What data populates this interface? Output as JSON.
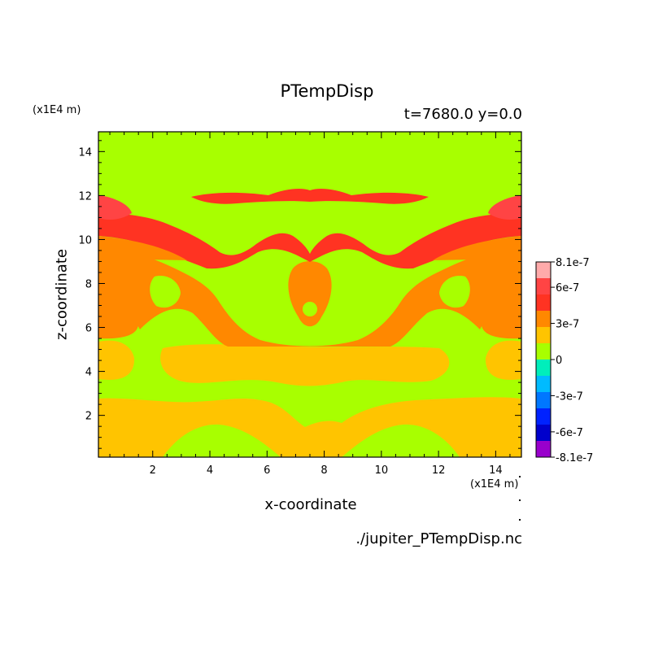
{
  "title": "PTempDisp",
  "subtitle": "t=7680.0 y=0.0",
  "file_label": "./jupiter_PTempDisp.nc",
  "chart_data": {
    "type": "heatmap",
    "title": "PTempDisp",
    "subtitle": "t=7680.0 y=0.0",
    "xlabel": "x-coordinate",
    "ylabel": "z-coordinate",
    "x_unit": "(x1E4 m)",
    "y_unit": "(x1E4 m)",
    "xlim": [
      0.1,
      14.9
    ],
    "ylim": [
      0.1,
      14.9
    ],
    "x_ticks": [
      2,
      4,
      6,
      8,
      10,
      12,
      14
    ],
    "y_ticks": [
      2,
      4,
      6,
      8,
      10,
      12,
      14
    ],
    "colorbar": {
      "tick_labels": [
        "8.1e-7",
        "6e-7",
        "3e-7",
        "0",
        "-3e-7",
        "-6e-7",
        "-8.1e-7"
      ],
      "tick_values": [
        8.1e-07,
        6e-07,
        3e-07,
        0,
        -3e-07,
        -6e-07,
        -8.1e-07
      ],
      "levels": [
        -8.1e-07,
        -6.75e-07,
        -5.4e-07,
        -4.05e-07,
        -2.7e-07,
        -1.35e-07,
        0,
        1.35e-07,
        2.7e-07,
        4.05e-07,
        5.4e-07,
        6.75e-07,
        8.1e-07
      ],
      "colors": [
        "#9900cc",
        "#0000cc",
        "#0022ff",
        "#0077ff",
        "#00bbff",
        "#00eebb",
        "#a8ff00",
        "#ffc400",
        "#ff8800",
        "#ff3322",
        "#ff4444",
        "#ffaaaa"
      ]
    },
    "regions": [
      {
        "name": "background",
        "value": 0,
        "color": "#a8ff00"
      },
      {
        "name": "lower-warm-layer",
        "value_range": [
          0,
          2.7e-07
        ],
        "z_range": [
          0.1,
          2.8
        ],
        "color": "#ffc400"
      },
      {
        "name": "mid-warm-layer",
        "value_range": [
          0,
          2.7e-07
        ],
        "z_range": [
          3.7,
          5.3
        ],
        "color": "#ffc400"
      },
      {
        "name": "plume-region",
        "value_range": [
          2.7e-07,
          5.4e-07
        ],
        "z_range": [
          5.2,
          9.5
        ],
        "color": "#ff8800"
      },
      {
        "name": "upper-hot-band",
        "value_range": [
          5.4e-07,
          6.75e-07
        ],
        "z_range": [
          9.5,
          12.3
        ],
        "color": "#ff3322"
      }
    ]
  }
}
